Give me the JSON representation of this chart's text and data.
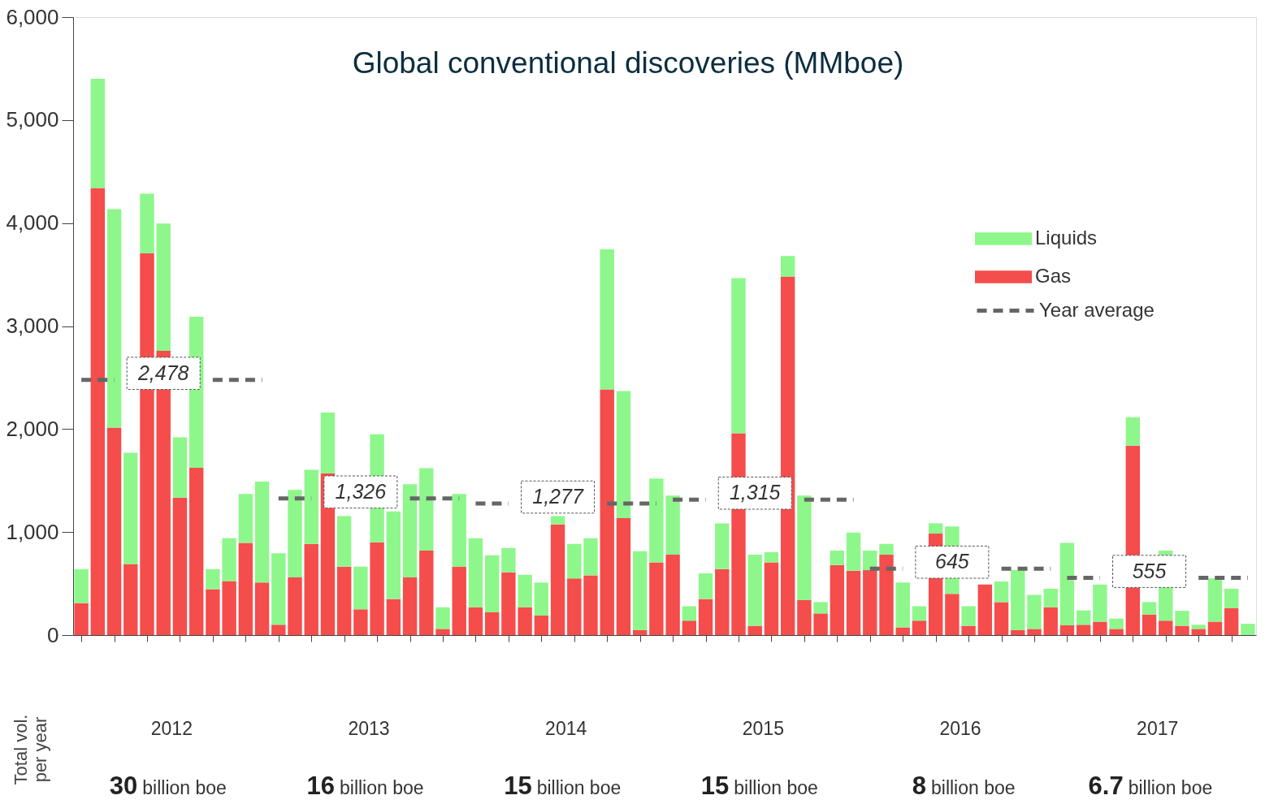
{
  "chart_data": {
    "type": "bar",
    "title": "Global conventional discoveries (MMboe)",
    "stacked": true,
    "legend": "top right",
    "grid": false,
    "tick_labels": "y",
    "categories": [
      null,
      null,
      null,
      null,
      null,
      null,
      null,
      null,
      null,
      null,
      null,
      null,
      null,
      null,
      null,
      null,
      null,
      null,
      null,
      null,
      null,
      null,
      null,
      null,
      null,
      null,
      null,
      null,
      null,
      null,
      null,
      null,
      null,
      null,
      null,
      null,
      null,
      null,
      null,
      null,
      null,
      null,
      null,
      null,
      null,
      null,
      null,
      null,
      null,
      null,
      null,
      null,
      null,
      null,
      null,
      null,
      null,
      null,
      null,
      null,
      null,
      null,
      null,
      null,
      null,
      null,
      null,
      null,
      null,
      null,
      null,
      null
    ],
    "ylim": [
      0,
      6000
    ],
    "yticks": [
      0,
      {
        "value": 1000,
        "label": "1,000"
      },
      {
        "value": 2000,
        "label": "2,000"
      },
      {
        "value": 3000,
        "label": "3,000"
      },
      {
        "value": 4000,
        "label": "4,000"
      },
      {
        "value": 5000,
        "label": "5,000"
      },
      {
        "value": 6000,
        "label": "6,000"
      }
    ],
    "series": [
      {
        "name": "Gas",
        "color": "#f54c4c",
        "values": [
          310,
          4340,
          2015,
          690,
          3705,
          2760,
          1335,
          1625,
          445,
          525,
          895,
          510,
          100,
          560,
          885,
          1570,
          665,
          250,
          900,
          350,
          560,
          820,
          60,
          665,
          270,
          220,
          610,
          270,
          190,
          1075,
          550,
          580,
          2385,
          1135,
          50,
          705,
          780,
          140,
          350,
          640,
          1960,
          90,
          705,
          3480,
          340,
          210,
          680,
          625,
          630,
          780,
          75,
          140,
          985,
          400,
          90,
          490,
          320,
          50,
          60,
          270,
          95,
          100,
          130,
          60,
          1840,
          200,
          140,
          90,
          60,
          130,
          260,
          0
        ]
      },
      {
        "name": "Liquids",
        "color": "#8ef78b",
        "values": [
          330,
          1060,
          2120,
          1080,
          580,
          1235,
          585,
          1465,
          195,
          415,
          475,
          980,
          695,
          850,
          720,
          590,
          490,
          415,
          1050,
          850,
          905,
          800,
          210,
          705,
          670,
          555,
          235,
          315,
          320,
          80,
          335,
          360,
          1360,
          1235,
          765,
          815,
          575,
          140,
          250,
          445,
          1505,
          690,
          100,
          200,
          1015,
          110,
          140,
          370,
          190,
          105,
          435,
          140,
          100,
          655,
          190,
          null,
          200,
          580,
          330,
          180,
          800,
          140,
          360,
          100,
          275,
          120,
          680,
          145,
          40,
          420,
          190,
          110
        ]
      },
      {
        "name": "Year average",
        "type": "line",
        "color": "#666666",
        "line_style": "dashed",
        "values": [
          2478,
          2478,
          2478,
          null,
          null,
          null,
          null,
          null,
          2478,
          2478,
          2478,
          2478,
          1326,
          1326,
          1326,
          null,
          null,
          null,
          null,
          null,
          1326,
          1326,
          1326,
          1326,
          1277,
          1277,
          1277,
          null,
          null,
          null,
          null,
          null,
          1277,
          1277,
          1277,
          1277,
          1315,
          1315,
          1315,
          null,
          null,
          null,
          null,
          null,
          1315,
          1315,
          1315,
          1315,
          645,
          645,
          645,
          null,
          null,
          null,
          null,
          null,
          645,
          645,
          645,
          645,
          555,
          555,
          555,
          null,
          null,
          null,
          null,
          null,
          555,
          555,
          555,
          555
        ]
      }
    ],
    "annotations": [
      "Total vol.\nper year",
      "2012",
      "30 billion boe",
      "2013",
      "16 billion boe",
      "2014",
      "15 billion boe",
      "2015",
      "15 billion boe",
      "2016",
      "8 billion boe",
      "2017",
      "6.7 billion boe",
      "2,478",
      "1,326",
      "1,277",
      "1,315",
      "645",
      "555"
    ]
  }
}
